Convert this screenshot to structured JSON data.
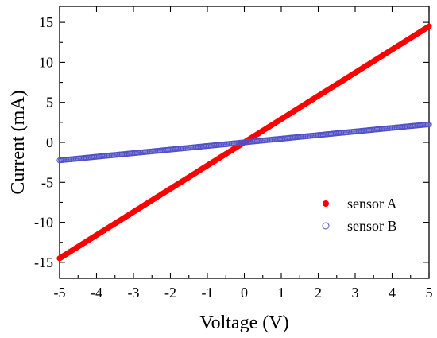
{
  "chart_data": {
    "type": "scatter",
    "title": "",
    "xlabel": "Voltage (V)",
    "ylabel": "Current (mA)",
    "xlim": [
      -5,
      5
    ],
    "ylim": [
      -17,
      17
    ],
    "x_ticks": [
      -5,
      -4,
      -3,
      -2,
      -1,
      0,
      1,
      2,
      3,
      4,
      5
    ],
    "x_tick_labels": [
      "-5",
      "-4",
      "-3",
      "-2",
      "-1",
      "0",
      "1",
      "2",
      "3",
      "4",
      "5"
    ],
    "y_ticks": [
      -15,
      -10,
      -5,
      0,
      5,
      10,
      15
    ],
    "y_tick_labels": [
      "-15",
      "-10",
      "-5",
      "0",
      "5",
      "10",
      "15"
    ],
    "grid": false,
    "legend_position": "lower-right",
    "series": [
      {
        "name": "sensor A",
        "marker": "filled-circle",
        "color": "#ff0000",
        "x": [
          -5,
          -4.5,
          -4,
          -3.5,
          -3,
          -2.5,
          -2,
          -1.5,
          -1,
          -0.5,
          0,
          0.5,
          1,
          1.5,
          2,
          2.5,
          3,
          3.5,
          4,
          4.5,
          5
        ],
        "y": [
          -14.5,
          -13.05,
          -11.6,
          -10.15,
          -8.7,
          -7.25,
          -5.8,
          -4.35,
          -2.9,
          -1.45,
          0,
          1.45,
          2.9,
          4.35,
          5.8,
          7.25,
          8.7,
          10.15,
          11.6,
          13.05,
          14.5
        ]
      },
      {
        "name": "sensor B",
        "marker": "open-circle",
        "color": "#5050c8",
        "x": [
          -5,
          -4.5,
          -4,
          -3.5,
          -3,
          -2.5,
          -2,
          -1.5,
          -1,
          -0.5,
          0,
          0.5,
          1,
          1.5,
          2,
          2.5,
          3,
          3.5,
          4,
          4.5,
          5
        ],
        "y": [
          -2.25,
          -2.03,
          -1.8,
          -1.58,
          -1.35,
          -1.13,
          -0.9,
          -0.68,
          -0.45,
          -0.23,
          0,
          0.23,
          0.45,
          0.68,
          0.9,
          1.13,
          1.35,
          1.58,
          1.8,
          2.03,
          2.25
        ]
      }
    ]
  }
}
